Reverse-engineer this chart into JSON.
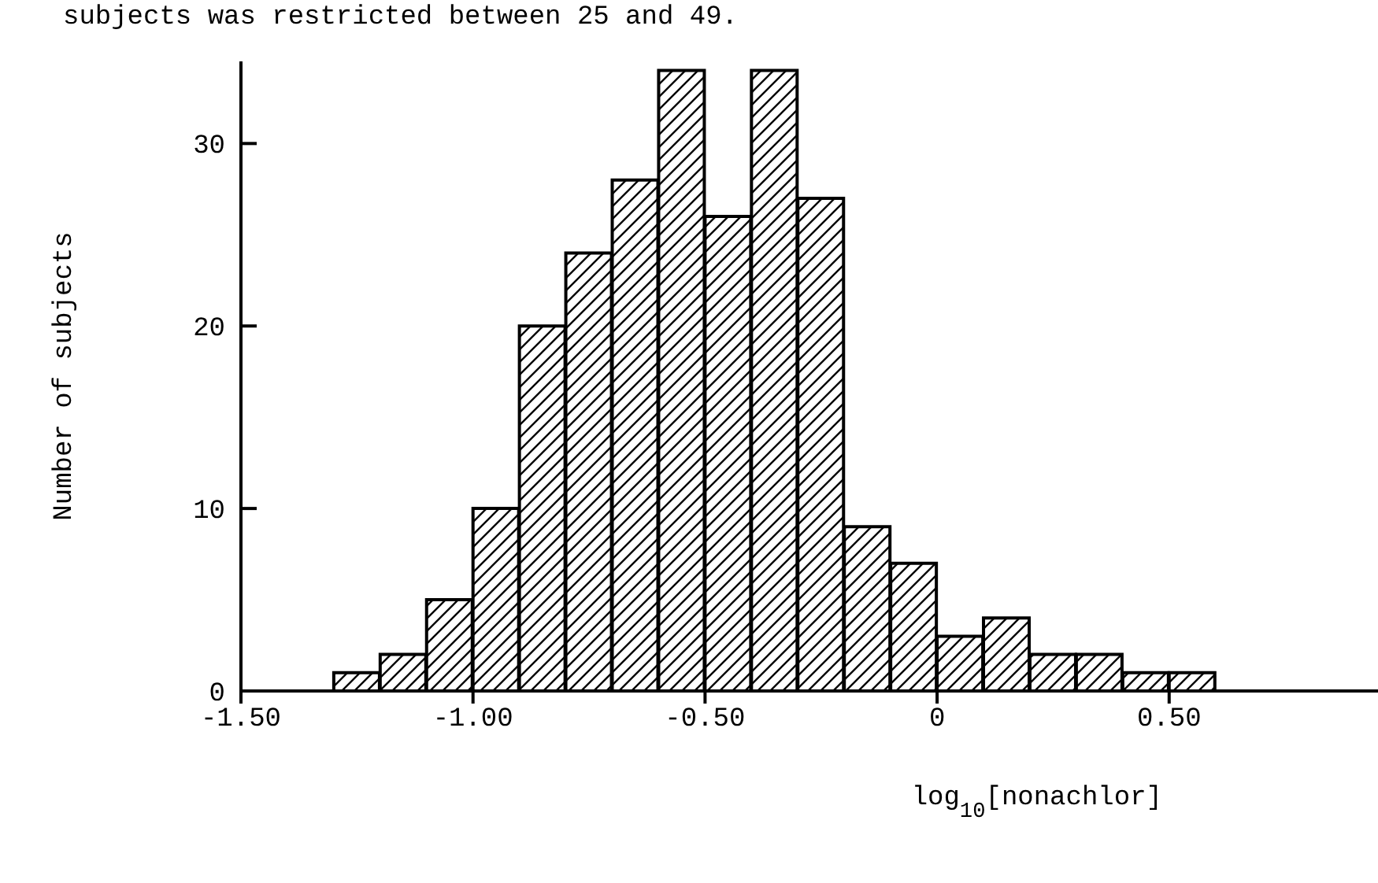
{
  "chart_data": {
    "type": "histogram",
    "annotations": [
      "subjects was restricted between 25 and 49."
    ],
    "xlabel": "log$_{10}$[nonachlor]",
    "ylabel": "Number of subjects",
    "bins": [
      -1.3,
      -1.2,
      -1.1,
      -1.0,
      -0.9,
      -0.8,
      -0.7,
      -0.6,
      -0.5,
      -0.4,
      -0.3,
      -0.2,
      -0.1,
      0,
      0.1,
      0.2,
      0.3,
      0.4,
      0.5,
      0.6
    ],
    "values": [
      1,
      2,
      5,
      10,
      20,
      24,
      28,
      34,
      26,
      34,
      27,
      9,
      7,
      3,
      4,
      2,
      2,
      1,
      1
    ],
    "color": "#000000",
    "xlim": [
      -1.5,
      0.95
    ],
    "xticks": [
      {
        "value": -1.5,
        "label": "-1.50"
      },
      {
        "value": -1,
        "label": "-1.00"
      },
      {
        "value": -0.5,
        "label": "-0.50"
      },
      0,
      {
        "value": 0.5,
        "label": "0.50"
      }
    ],
    "ylim": [
      0,
      34.5
    ],
    "yticks": [
      0,
      10,
      20,
      30
    ],
    "grid": false,
    "legend": false
  }
}
